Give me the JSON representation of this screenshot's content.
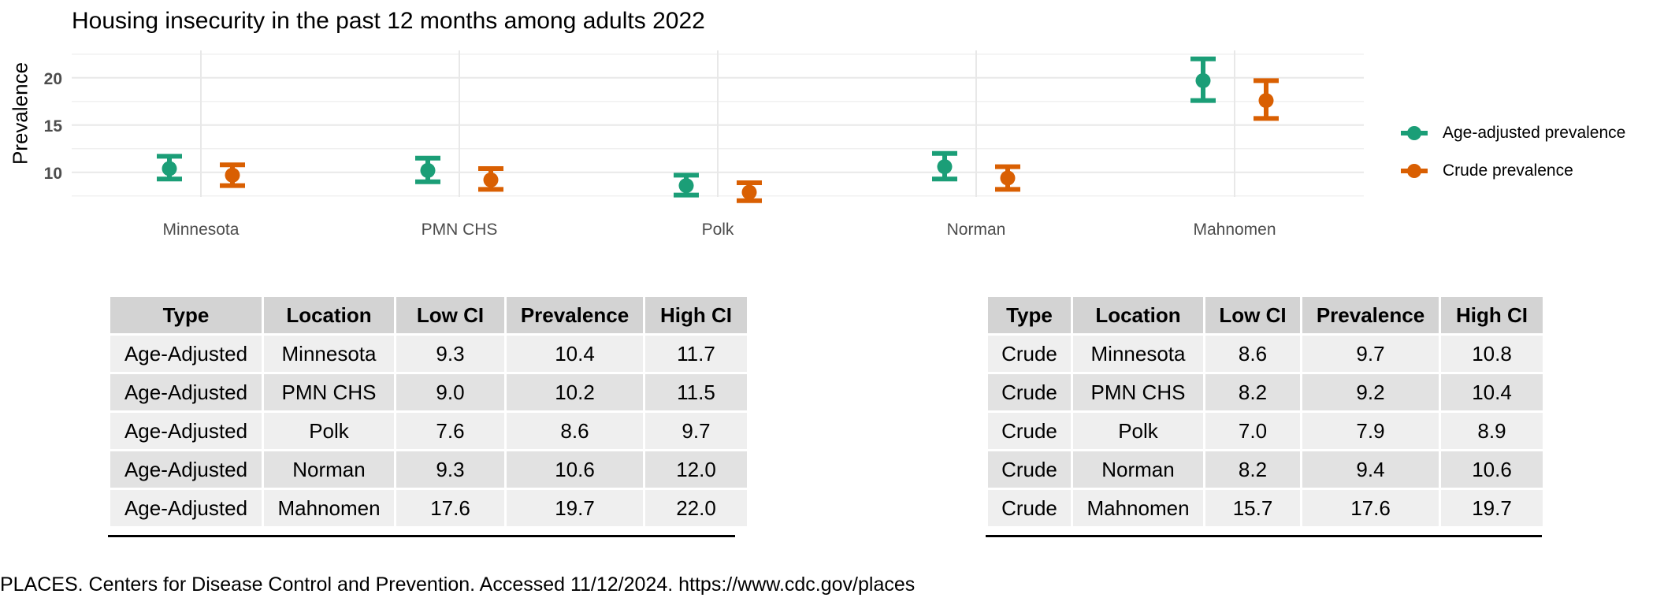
{
  "chart_data": {
    "type": "errorbar",
    "title": "Housing insecurity in the past 12 months among adults 2022",
    "xlabel": "",
    "ylabel": "Prevalence",
    "categories": [
      "Minnesota",
      "PMN CHS",
      "Polk",
      "Norman",
      "Mahnomen"
    ],
    "yticks": [
      10,
      15,
      20
    ],
    "ylim": [
      7.4,
      22.9
    ],
    "grid": true,
    "legend_position": "right",
    "series": [
      {
        "name": "Age-adjusted prevalence",
        "color": "#1b9e77",
        "values": [
          10.4,
          10.2,
          8.6,
          10.6,
          19.7
        ],
        "low": [
          9.3,
          9.0,
          7.6,
          9.3,
          17.6
        ],
        "high": [
          11.7,
          11.5,
          9.7,
          12.0,
          22.0
        ]
      },
      {
        "name": "Crude prevalence",
        "color": "#d95f02",
        "values": [
          9.7,
          9.2,
          7.9,
          9.4,
          17.6
        ],
        "low": [
          8.6,
          8.2,
          7.0,
          8.2,
          15.7
        ],
        "high": [
          10.8,
          10.4,
          8.9,
          10.6,
          19.7
        ]
      }
    ]
  },
  "tables": {
    "headers": [
      "Type",
      "Location",
      "Low CI",
      "Prevalence",
      "High CI"
    ],
    "age_adjusted": [
      [
        "Age-Adjusted",
        "Minnesota",
        "9.3",
        "10.4",
        "11.7"
      ],
      [
        "Age-Adjusted",
        "PMN CHS",
        "9.0",
        "10.2",
        "11.5"
      ],
      [
        "Age-Adjusted",
        "Polk",
        "7.6",
        "8.6",
        "9.7"
      ],
      [
        "Age-Adjusted",
        "Norman",
        "9.3",
        "10.6",
        "12.0"
      ],
      [
        "Age-Adjusted",
        "Mahnomen",
        "17.6",
        "19.7",
        "22.0"
      ]
    ],
    "crude": [
      [
        "Crude",
        "Minnesota",
        "8.6",
        "9.7",
        "10.8"
      ],
      [
        "Crude",
        "PMN CHS",
        "8.2",
        "9.2",
        "10.4"
      ],
      [
        "Crude",
        "Polk",
        "7.0",
        "7.9",
        "8.9"
      ],
      [
        "Crude",
        "Norman",
        "8.2",
        "9.4",
        "10.6"
      ],
      [
        "Crude",
        "Mahnomen",
        "15.7",
        "17.6",
        "19.7"
      ]
    ]
  },
  "source": "PLACES. Centers for Disease Control and Prevention. Accessed 11/12/2024. https://www.cdc.gov/places"
}
